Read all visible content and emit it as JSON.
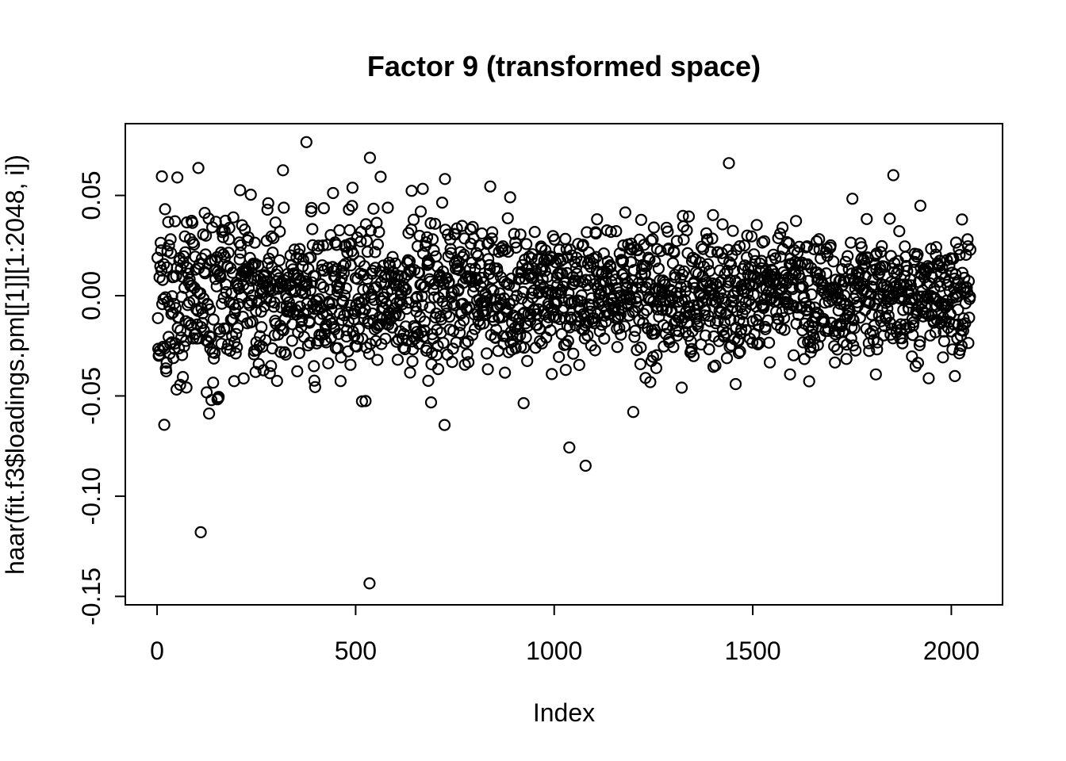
{
  "chart_data": {
    "type": "scatter",
    "title": "Factor 9 (transformed space)",
    "xlabel": "Index",
    "ylabel": "haar(fit.f3$loadings.pm[[1]][1:2048, i])",
    "grid": false,
    "legend": null,
    "xlim": [
      -80,
      2129
    ],
    "ylim": [
      -0.1542,
      0.0858
    ],
    "x_tick_values": [
      0,
      500,
      1000,
      1500,
      2000
    ],
    "x_tick_labels": [
      "0",
      "500",
      "1000",
      "1500",
      "2000"
    ],
    "y_tick_values": [
      0.05,
      0.0,
      -0.05,
      -0.1,
      -0.15
    ],
    "y_tick_labels": [
      "0.05",
      "0.00",
      "-0.05",
      "-0.10",
      "-0.15"
    ],
    "n_points": 2048,
    "x_description": "index 1..2048, evenly spaced",
    "marker": {
      "shape": "open-circle",
      "color": "#000000",
      "radius_px": 6.5,
      "stroke_px": 2.2
    },
    "axis_color": "#000000",
    "generator": {
      "kind": "gaussian-noise",
      "seed": 1337,
      "mean": 0,
      "sd_base": 0.019,
      "left_boost": 0.009,
      "left_decay": 150,
      "right_slope": -0.0035,
      "clamp_abs": 0.066
    },
    "outliers": [
      [
        110,
        -0.118
      ],
      [
        535,
        -0.1435
      ],
      [
        1038,
        -0.0757
      ],
      [
        1079,
        -0.0848
      ],
      [
        923,
        -0.0536
      ],
      [
        1199,
        -0.058
      ],
      [
        724,
        -0.0645
      ],
      [
        376,
        0.0766
      ],
      [
        536,
        0.0688
      ],
      [
        104,
        0.0637
      ],
      [
        12,
        0.0595
      ],
      [
        1440,
        0.0661
      ],
      [
        1854,
        0.0601
      ],
      [
        563,
        0.0593
      ],
      [
        669,
        0.0533
      ],
      [
        839,
        0.0545
      ]
    ]
  }
}
